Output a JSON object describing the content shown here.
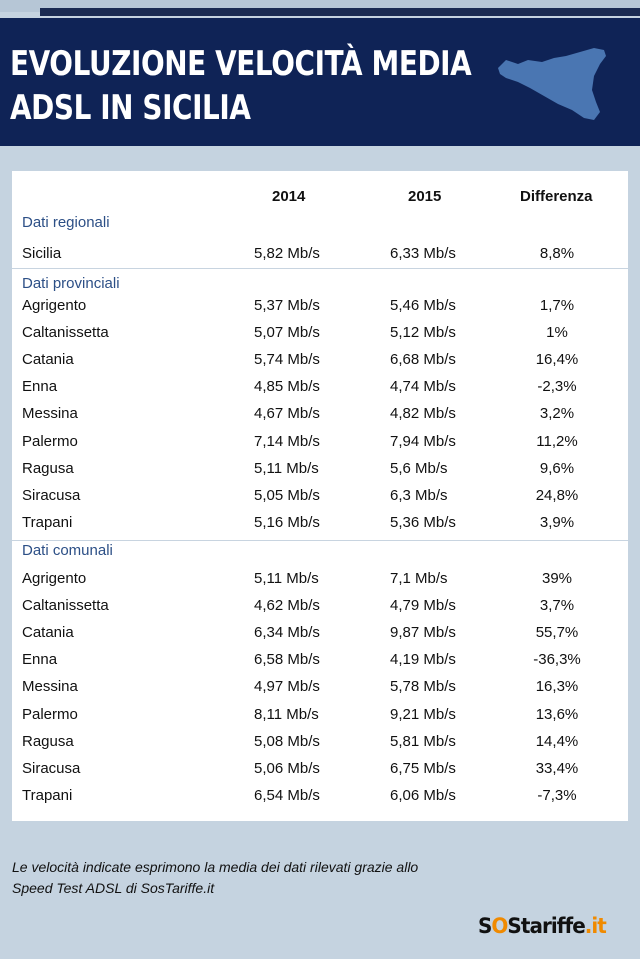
{
  "header": {
    "title_line1": "EVOLUZIONE VELOCITÀ MEDIA",
    "title_line2": "ADSL IN SICILIA"
  },
  "colors": {
    "header_bg": "#0f2356",
    "map_fill": "#4a76b2",
    "section_label": "#2c4f86",
    "page_bg": "#c5d3e0",
    "logo_accent": "#f08a00"
  },
  "icons": {
    "map": "sicily-map-icon"
  },
  "chart_data": {
    "type": "table",
    "columns": [
      "",
      "2014",
      "2015",
      "Differenza"
    ],
    "sections": [
      {
        "label": "Dati regionali",
        "rows": [
          {
            "name": "Sicilia",
            "y2014": "5,82 Mb/s",
            "y2015": "6,33 Mb/s",
            "diff": "8,8%"
          }
        ]
      },
      {
        "label": "Dati provinciali",
        "rows": [
          {
            "name": "Agrigento",
            "y2014": "5,37 Mb/s",
            "y2015": "5,46 Mb/s",
            "diff": "1,7%"
          },
          {
            "name": "Caltanissetta",
            "y2014": "5,07 Mb/s",
            "y2015": "5,12 Mb/s",
            "diff": "1%"
          },
          {
            "name": "Catania",
            "y2014": "5,74 Mb/s",
            "y2015": "6,68 Mb/s",
            "diff": "16,4%"
          },
          {
            "name": "Enna",
            "y2014": "4,85 Mb/s",
            "y2015": "4,74 Mb/s",
            "diff": "-2,3%"
          },
          {
            "name": "Messina",
            "y2014": "4,67 Mb/s",
            "y2015": "4,82 Mb/s",
            "diff": "3,2%"
          },
          {
            "name": "Palermo",
            "y2014": "7,14 Mb/s",
            "y2015": "7,94 Mb/s",
            "diff": "11,2%"
          },
          {
            "name": "Ragusa",
            "y2014": "5,11 Mb/s",
            "y2015": "5,6 Mb/s",
            "diff": "9,6%"
          },
          {
            "name": "Siracusa",
            "y2014": "5,05 Mb/s",
            "y2015": "6,3 Mb/s",
            "diff": "24,8%"
          },
          {
            "name": "Trapani",
            "y2014": "5,16 Mb/s",
            "y2015": "5,36 Mb/s",
            "diff": "3,9%"
          }
        ]
      },
      {
        "label": "Dati comunali",
        "rows": [
          {
            "name": "Agrigento",
            "y2014": "5,11 Mb/s",
            "y2015": "7,1 Mb/s",
            "diff": "39%"
          },
          {
            "name": "Caltanissetta",
            "y2014": "4,62 Mb/s",
            "y2015": "4,79 Mb/s",
            "diff": "3,7%"
          },
          {
            "name": "Catania",
            "y2014": "6,34 Mb/s",
            "y2015": "9,87 Mb/s",
            "diff": "55,7%"
          },
          {
            "name": "Enna",
            "y2014": "6,58 Mb/s",
            "y2015": "4,19 Mb/s",
            "diff": "-36,3%"
          },
          {
            "name": "Messina",
            "y2014": "4,97 Mb/s",
            "y2015": "5,78 Mb/s",
            "diff": "16,3%"
          },
          {
            "name": "Palermo",
            "y2014": "8,11 Mb/s",
            "y2015": "9,21 Mb/s",
            "diff": "13,6%"
          },
          {
            "name": "Ragusa",
            "y2014": "5,08 Mb/s",
            "y2015": "5,81 Mb/s",
            "diff": "14,4%"
          },
          {
            "name": "Siracusa",
            "y2014": "5,06 Mb/s",
            "y2015": "6,75 Mb/s",
            "diff": "33,4%"
          },
          {
            "name": "Trapani",
            "y2014": "6,54 Mb/s",
            "y2015": "6,06 Mb/s",
            "diff": "-7,3%"
          }
        ]
      }
    ]
  },
  "footnote": {
    "line1": "Le velocità indicate esprimono la media dei dati rilevati grazie allo",
    "line2": "Speed Test ADSL di SosTariffe.it"
  },
  "logo": {
    "part1": "S",
    "part2": "O",
    "part3": "S",
    "part4": "tariffe",
    "part5": ".it"
  }
}
